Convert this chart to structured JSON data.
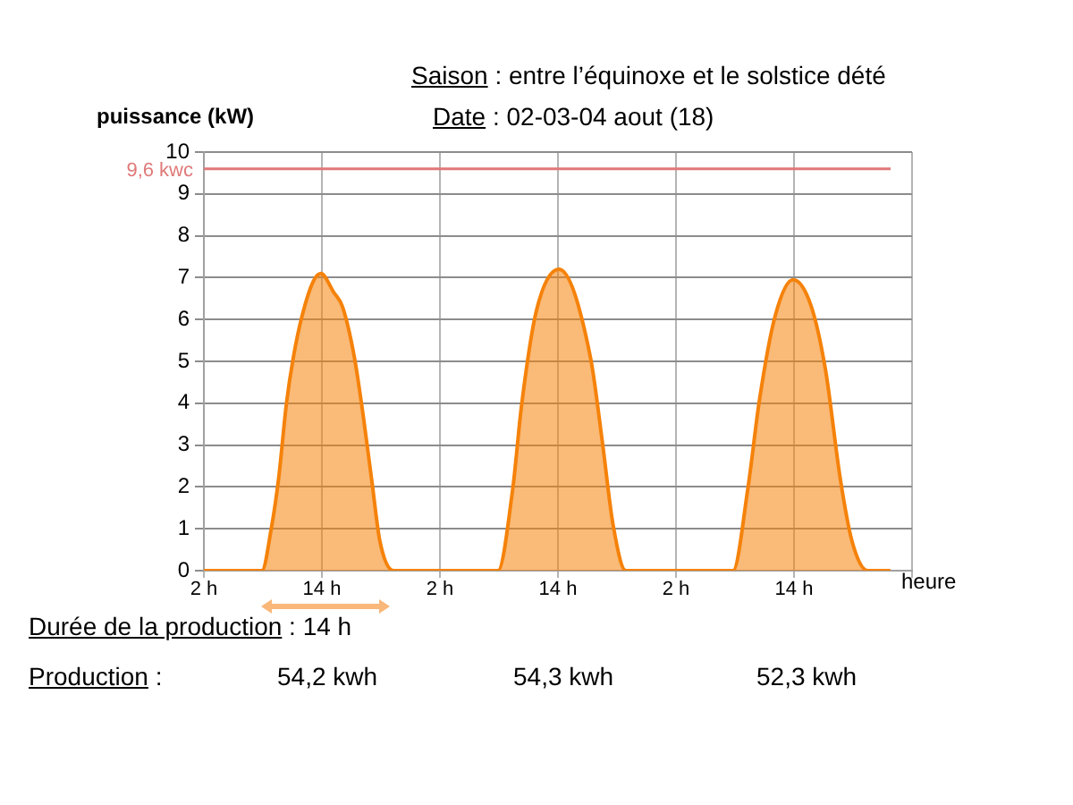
{
  "chart_data": {
    "type": "area",
    "title": "Saison : entre l’équinoxe et le solstice dété",
    "subtitle": "Date  : 02-03-04 aout (18)",
    "ylabel": "puissance  (kW)",
    "xlabel": "heure",
    "annotations": [
      "Durée de la production : 14 h",
      "Production :",
      "54,2 kwh",
      "54,3 kwh",
      "52,3 kwh"
    ],
    "series": [
      {
        "color": "#f5820a",
        "x": [
          "--08-02T02:00",
          "--08-02T07:54",
          "--08-02T08:51",
          "--08-02T09:36",
          "--08-02T10:24",
          "--08-02T11:06",
          "--08-02T12:00",
          "--08-02T13:06",
          "--08-02T13:54",
          "--08-02T15:12",
          "--08-02T16:06",
          "--08-02T17:18",
          "--08-02T18:12",
          "--08-02T19:06",
          "--08-02T19:54",
          "--08-02T21:18",
          "--08-03T07:54",
          "--08-03T09:24",
          "--08-03T10:18",
          "--08-03T11:48",
          "--08-03T14:06",
          "--08-03T17:18",
          "--08-03T18:30",
          "--08-03T19:36",
          "--08-03T20:54",
          "--08-04T07:48",
          "--08-04T09:18",
          "--08-04T10:30",
          "--08-04T12:06",
          "--08-04T13:54",
          "--08-04T15:42",
          "--08-04T17:12",
          "--08-04T18:42",
          "--08-04T19:54",
          "--08-04T21:30",
          "--08-04T23:48"
        ],
        "values": [
          0,
          0,
          1.0,
          2.2,
          4.0,
          5.1,
          6.1,
          6.9,
          7.1,
          6.65,
          6.3,
          5.1,
          3.7,
          2.1,
          0.7,
          0,
          0,
          1.95,
          3.95,
          6.2,
          7.2,
          5.1,
          3.1,
          1.1,
          0,
          0,
          1.95,
          4.1,
          6.1,
          6.95,
          6.35,
          4.8,
          2.2,
          0.7,
          0,
          0
        ]
      }
    ],
    "xlim": [
      "--08-02T02:00",
      "--08-05T02:00"
    ],
    "xticks": [
      {
        "value": "--08-02T02:00",
        "label": "2 h"
      },
      {
        "value": "--08-02T14:00",
        "label": "14 h"
      },
      {
        "value": "--08-03T02:00",
        "label": "2 h"
      },
      {
        "value": "--08-03T14:00",
        "label": "14 h"
      },
      {
        "value": "--08-04T02:00",
        "label": "2 h"
      },
      {
        "value": "--08-04T14:00",
        "label": "14 h"
      },
      {
        "value": "--08-05T02:00",
        "label": null
      }
    ],
    "ylim": [
      0,
      10
    ],
    "yticks": [
      0,
      1,
      2,
      3,
      4,
      5,
      6,
      7,
      8,
      9,
      10
    ],
    "ref_lines": [
      {
        "axis": "y",
        "value": 9.6,
        "label": "9,6 kwc",
        "color": "#e07878"
      }
    ],
    "grid": true,
    "legend": false,
    "marker": "none"
  }
}
